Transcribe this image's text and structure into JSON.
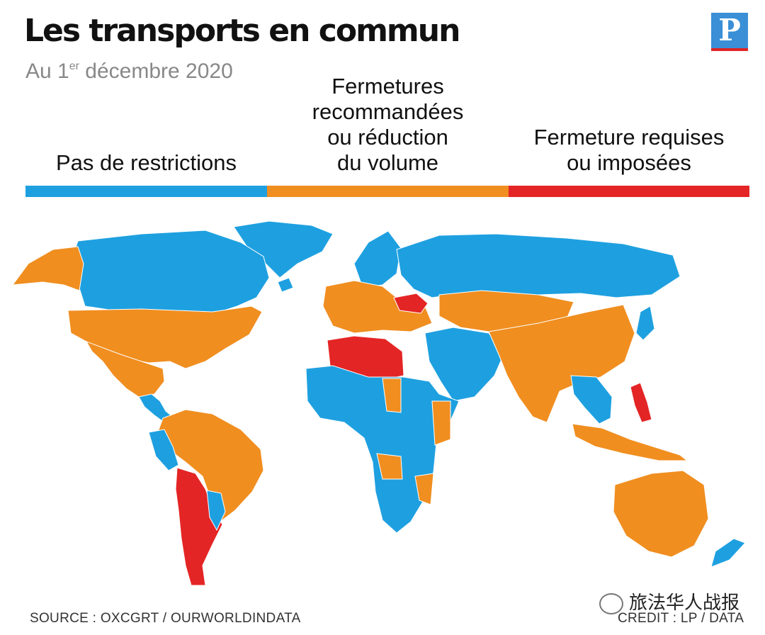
{
  "header": {
    "title": "Les transports en commun",
    "subtitle_prefix": "Au 1",
    "subtitle_sup": "er",
    "subtitle_suffix": " décembre 2020",
    "logo_letter": "P"
  },
  "legend": {
    "items": [
      {
        "label": "Pas de restrictions",
        "color": "#1ea0e0"
      },
      {
        "label": "Fermetures\nrecommandées\nou réduction\ndu volume",
        "color": "#f08e20"
      },
      {
        "label": "Fermeture requises\nou imposées",
        "color": "#e42525"
      }
    ]
  },
  "map": {
    "ocean_color": "#ffffff",
    "regions": [
      {
        "name": "canada",
        "status": "none"
      },
      {
        "name": "greenland",
        "status": "none"
      },
      {
        "name": "alaska",
        "status": "reduced"
      },
      {
        "name": "usa",
        "status": "reduced"
      },
      {
        "name": "mexico",
        "status": "reduced"
      },
      {
        "name": "central-america",
        "status": "none"
      },
      {
        "name": "south-america-north",
        "status": "reduced"
      },
      {
        "name": "andes",
        "status": "none"
      },
      {
        "name": "bolivia-chile-argentina",
        "status": "required"
      },
      {
        "name": "paraguay-uruguay",
        "status": "none"
      },
      {
        "name": "western-europe",
        "status": "reduced"
      },
      {
        "name": "scandinavia",
        "status": "none"
      },
      {
        "name": "ukraine",
        "status": "required"
      },
      {
        "name": "russia",
        "status": "none"
      },
      {
        "name": "north-africa",
        "status": "required"
      },
      {
        "name": "africa",
        "status": "none"
      },
      {
        "name": "africa-east",
        "status": "reduced"
      },
      {
        "name": "middle-east",
        "status": "none"
      },
      {
        "name": "central-asia",
        "status": "reduced"
      },
      {
        "name": "china-india",
        "status": "reduced"
      },
      {
        "name": "southeast-asia",
        "status": "none"
      },
      {
        "name": "philippines",
        "status": "required"
      },
      {
        "name": "indonesia",
        "status": "reduced"
      },
      {
        "name": "australia",
        "status": "reduced"
      },
      {
        "name": "new-zealand",
        "status": "none"
      },
      {
        "name": "japan",
        "status": "none"
      }
    ]
  },
  "footer": {
    "source": "SOURCE : OXCGRT / OURWORLDINDATA",
    "credit": "CREDIT : LP / DATA"
  },
  "watermark": "旅法华人战报"
}
